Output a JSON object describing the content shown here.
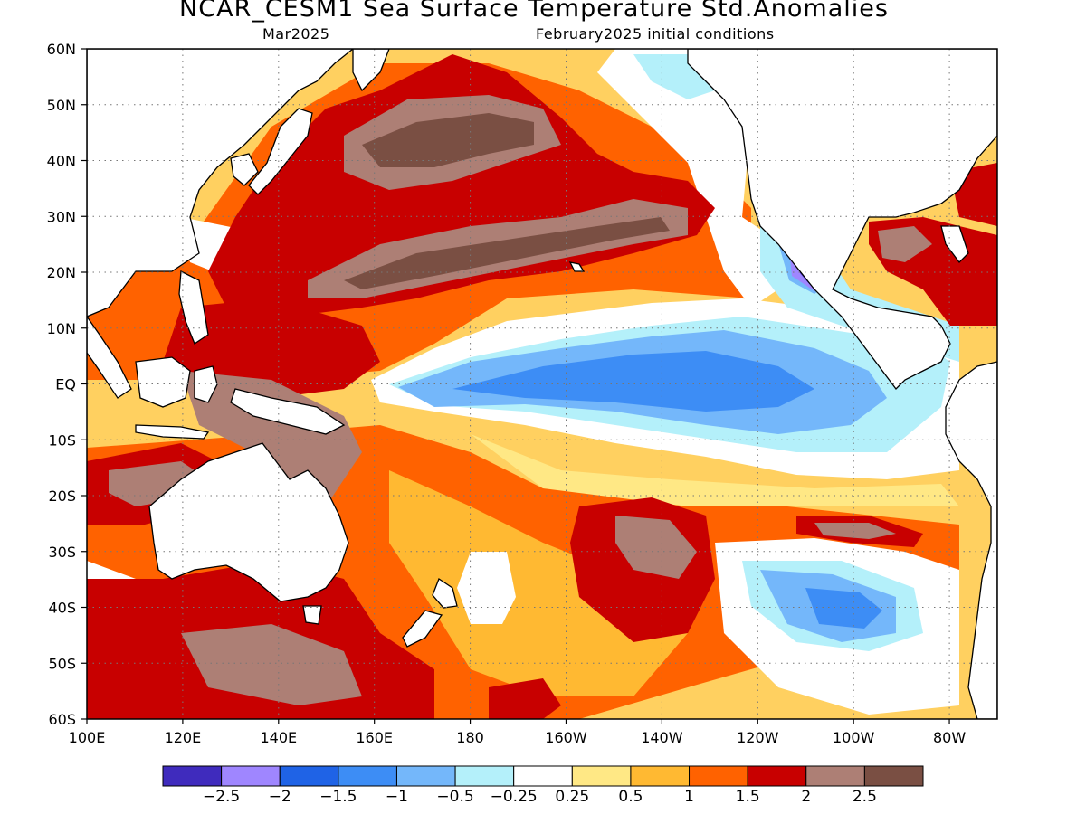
{
  "title": "NCAR_CESM1 Sea Surface Temperature Std.Anomalies",
  "subtitle_left": "Mar2025",
  "subtitle_right": "February2025 initial conditions",
  "map": {
    "lon_range": [
      100,
      290
    ],
    "lat_range": [
      -60,
      60
    ],
    "grid": "dotted",
    "lat_ticks": [
      {
        "lat": 60,
        "label": "60N"
      },
      {
        "lat": 50,
        "label": "50N"
      },
      {
        "lat": 40,
        "label": "40N"
      },
      {
        "lat": 30,
        "label": "30N"
      },
      {
        "lat": 20,
        "label": "20N"
      },
      {
        "lat": 10,
        "label": "10N"
      },
      {
        "lat": 0,
        "label": "EQ"
      },
      {
        "lat": -10,
        "label": "10S"
      },
      {
        "lat": -20,
        "label": "20S"
      },
      {
        "lat": -30,
        "label": "30S"
      },
      {
        "lat": -40,
        "label": "40S"
      },
      {
        "lat": -50,
        "label": "50S"
      },
      {
        "lat": -60,
        "label": "60S"
      }
    ],
    "lon_ticks": [
      {
        "lon": 100,
        "label": "100E"
      },
      {
        "lon": 120,
        "label": "120E"
      },
      {
        "lon": 140,
        "label": "140E"
      },
      {
        "lon": 160,
        "label": "160E"
      },
      {
        "lon": 180,
        "label": "180"
      },
      {
        "lon": 200,
        "label": "160W"
      },
      {
        "lon": 220,
        "label": "140W"
      },
      {
        "lon": 240,
        "label": "120W"
      },
      {
        "lon": 260,
        "label": "100W"
      },
      {
        "lon": 280,
        "label": "80W"
      }
    ]
  },
  "colorbar": {
    "colors": [
      "#3f2bbd",
      "#9f86ff",
      "#1f63e6",
      "#3d8df5",
      "#74b7fa",
      "#b4f0fa",
      "#ffffff",
      "#ffe885",
      "#ffb932",
      "#ff6200",
      "#c80000",
      "#ad7f75",
      "#7a4f43"
    ],
    "labels": [
      "−2.5",
      "−2",
      "−1.5",
      "−1",
      "−0.5",
      "−0.25",
      "0.25",
      "0.5",
      "1",
      "1.5",
      "2",
      "2.5"
    ]
  },
  "palette": {
    "land": "#ffffff",
    "coast": "#000000"
  },
  "anomaly_features": [
    {
      "name": "warm-west-pacific",
      "level": 1.5,
      "lon": 160,
      "lat": 15,
      "rx": 70,
      "ry": 22,
      "rot": -10
    },
    {
      "name": "warm-nw-pacific-band",
      "level": 2,
      "lon": 165,
      "lat": 25,
      "rx": 55,
      "ry": 12,
      "rot": -12
    },
    {
      "name": "warm-maritime",
      "level": 2,
      "lon": 140,
      "lat": 0,
      "rx": 38,
      "ry": 14,
      "rot": 0
    },
    {
      "name": "warm-north-pacific",
      "level": 1.5,
      "lon": 190,
      "lat": 40,
      "rx": 45,
      "ry": 12,
      "rot": -5
    },
    {
      "name": "very-warm-north-pacific",
      "level": 2.5,
      "lon": 190,
      "lat": 43,
      "rx": 25,
      "ry": 5,
      "rot": 0
    },
    {
      "name": "very-warm-nw-band",
      "level": 2.5,
      "lon": 180,
      "lat": 25,
      "rx": 30,
      "ry": 4,
      "rot": -14
    },
    {
      "name": "cool-equatorial-east",
      "level": -1,
      "lon": 225,
      "lat": -2,
      "rx": 40,
      "ry": 5,
      "rot": 0
    },
    {
      "name": "cold-baja",
      "level": -2.5,
      "lon": 249,
      "lat": 20,
      "rx": 2,
      "ry": 2,
      "rot": 0
    },
    {
      "name": "warm-south-pacific",
      "level": 1,
      "lon": 180,
      "lat": -38,
      "rx": 70,
      "ry": 18,
      "rot": 0
    },
    {
      "name": "warm-southern-ocean",
      "level": 1.5,
      "lon": 150,
      "lat": -45,
      "rx": 40,
      "ry": 12,
      "rot": 0
    },
    {
      "name": "warm-se-pacific",
      "level": 2,
      "lon": 255,
      "lat": -27,
      "rx": 12,
      "ry": 3,
      "rot": 0
    },
    {
      "name": "cool-se-pacific",
      "level": -1,
      "lon": 260,
      "lat": -38,
      "rx": 15,
      "ry": 5,
      "rot": 0
    },
    {
      "name": "warm-gulf-mexico",
      "level": 2,
      "lon": 268,
      "lat": 25,
      "rx": 8,
      "ry": 5,
      "rot": 0
    }
  ]
}
